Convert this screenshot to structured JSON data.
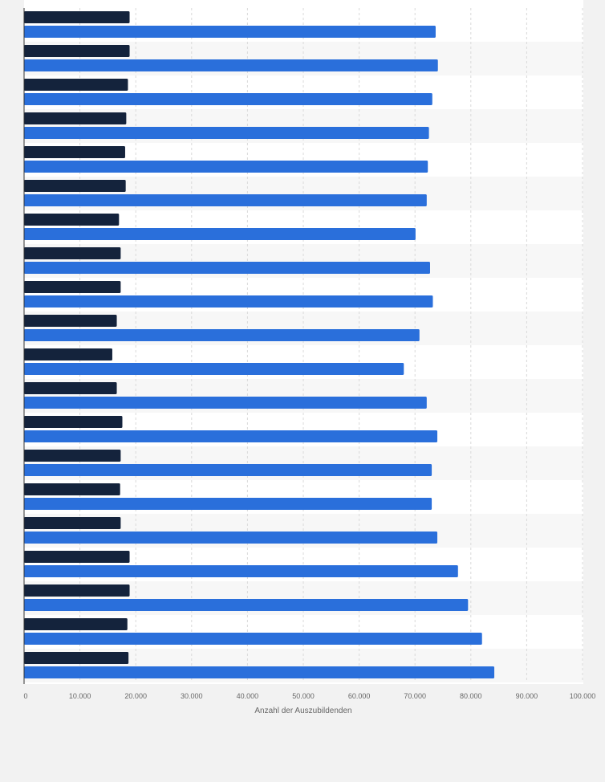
{
  "chart_data": {
    "type": "bar",
    "orientation": "horizontal",
    "categories": [
      "",
      "",
      "",
      "",
      "",
      "",
      "",
      "",
      "",
      "",
      "",
      "",
      "",
      "",
      "",
      "",
      "",
      "",
      "",
      ""
    ],
    "series": [
      {
        "color": "#14233c",
        "values": [
          18900,
          18900,
          18600,
          18300,
          18100,
          18200,
          17000,
          17300,
          17300,
          16600,
          15800,
          16600,
          17600,
          17300,
          17200,
          17300,
          18900,
          18900,
          18500,
          18700
        ]
      },
      {
        "color": "#2a6fdb",
        "values": [
          73700,
          74100,
          73100,
          72500,
          72300,
          72100,
          70100,
          72700,
          73200,
          70800,
          68000,
          72100,
          74000,
          73000,
          73000,
          74000,
          77700,
          79500,
          82000,
          84200
        ]
      }
    ],
    "xlabel": "Anzahl der Auszubildenden",
    "xlim": [
      0,
      100000
    ],
    "xticks": [
      0,
      10000,
      20000,
      30000,
      40000,
      50000,
      60000,
      70000,
      80000,
      90000,
      100000
    ],
    "xtick_labels": [
      "0",
      "10.000",
      "20.000",
      "30.000",
      "40.000",
      "50.000",
      "60.000",
      "70.000",
      "80.000",
      "90.000",
      "100.000"
    ],
    "grid": true,
    "legend": "none"
  }
}
